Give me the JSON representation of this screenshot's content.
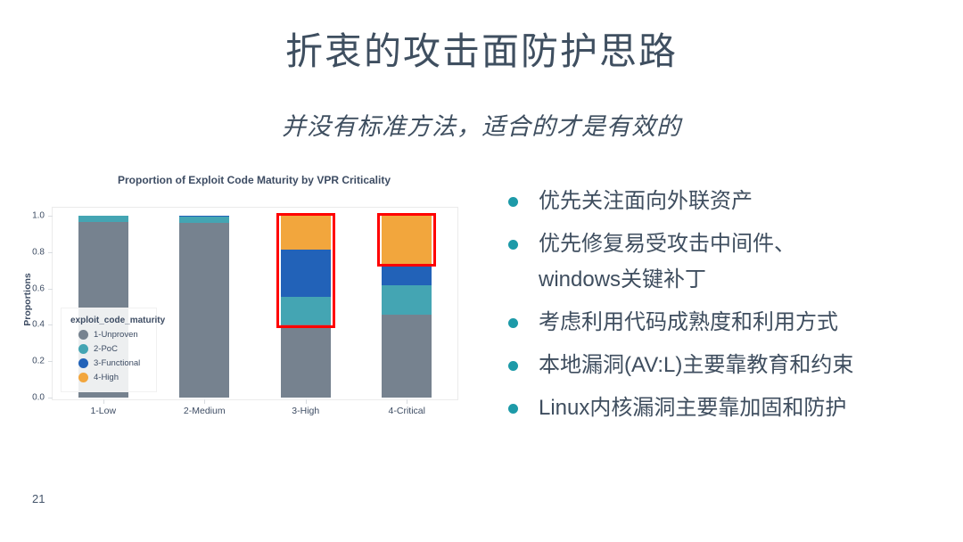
{
  "slide": {
    "title": "折衷的攻击面防护思路",
    "subtitle": "并没有标准方法，适合的才是有效的",
    "page_number": "21"
  },
  "bullets": {
    "bullet_color": "#1D9AA8",
    "items": [
      [
        "优先关注面向外联资产"
      ],
      [
        "优先修复易受攻击中间件、",
        "windows关键补丁"
      ],
      [
        "考虑利用代码成熟度和利用方式"
      ],
      [
        "本地漏洞(AV:L)主要靠教育和约束"
      ],
      [
        "Linux内核漏洞主要靠加固和防护"
      ]
    ]
  },
  "chart_data": {
    "type": "bar",
    "subtype": "stacked-proportion",
    "title": "Proportion of Exploit Code Maturity by VPR Criticality",
    "xlabel": "",
    "ylabel": "Proportions",
    "ylim": [
      0,
      1.0
    ],
    "yticks": [
      0.0,
      0.2,
      0.4,
      0.6,
      0.8,
      1.0
    ],
    "grid": false,
    "categories": [
      "1-Low",
      "2-Medium",
      "3-High",
      "4-Critical"
    ],
    "series": [
      {
        "name": "1-Unproven",
        "color": "#76828F",
        "values": [
          0.965,
          0.962,
          0.4,
          0.455
        ]
      },
      {
        "name": "2-PoC",
        "color": "#44A5B3",
        "values": [
          0.035,
          0.031,
          0.155,
          0.165
        ]
      },
      {
        "name": "3-Functional",
        "color": "#2262B8",
        "values": [
          0.0,
          0.007,
          0.26,
          0.115
        ]
      },
      {
        "name": "4-High",
        "color": "#F2A63D",
        "values": [
          0.0,
          0.0,
          0.185,
          0.265
        ]
      }
    ],
    "legend": {
      "title": "exploit_code_maturity",
      "position": "inside lower left"
    },
    "highlight_color": "#FF0000",
    "highlights": [
      {
        "category": "3-High",
        "index": 2,
        "from": 0.397,
        "to": 1.0
      },
      {
        "category": "4-Critical",
        "index": 3,
        "from": 0.735,
        "to": 1.0
      }
    ]
  }
}
